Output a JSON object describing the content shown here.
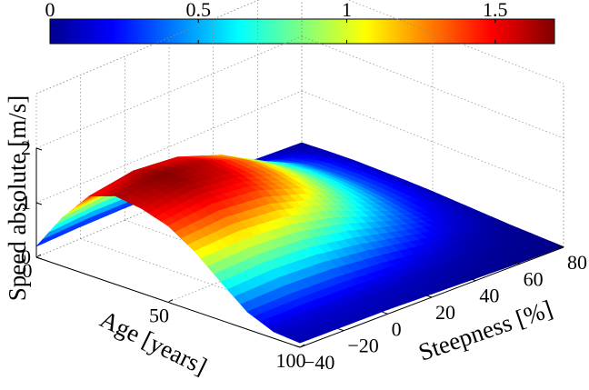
{
  "chart_data": {
    "type": "surface3d",
    "title": "",
    "colorbar": {
      "ticks": [
        0,
        0.5,
        1,
        1.5
      ],
      "tick_labels": [
        "0",
        "0.5",
        "1",
        "1.5"
      ],
      "range": [
        0,
        1.7
      ],
      "colormap": "jet",
      "placement": "top"
    },
    "xlabel": "Age [years]",
    "ylabel": "Steepness [%]",
    "zlabel": "Speed absolute [m/s]",
    "x_ticks": [
      0,
      50,
      100
    ],
    "x_tick_labels": [
      "0",
      "50",
      "100"
    ],
    "y_ticks": [
      -40,
      -20,
      0,
      20,
      40,
      60,
      80
    ],
    "y_tick_labels": [
      "−40",
      "−20",
      "0",
      "20",
      "40",
      "60",
      "80"
    ],
    "z_ticks": [
      0,
      1,
      2
    ],
    "z_tick_labels": [
      "0",
      "1",
      "2"
    ],
    "xlim": [
      0,
      100
    ],
    "ylim": [
      -40,
      80
    ],
    "zlim": [
      0,
      3
    ],
    "grid": true,
    "surface": {
      "age": [
        0,
        10,
        20,
        30,
        40,
        50,
        60,
        70,
        80,
        90,
        100
      ],
      "steepness": [
        -40,
        -20,
        0,
        20,
        40,
        60,
        80
      ],
      "speed": [
        [
          0.2,
          0.22,
          0.22,
          0.2,
          0.16,
          0.1,
          0.05
        ],
        [
          0.9,
          0.98,
          0.95,
          0.78,
          0.52,
          0.26,
          0.08
        ],
        [
          1.45,
          1.58,
          1.5,
          1.2,
          0.75,
          0.35,
          0.1
        ],
        [
          1.62,
          1.7,
          1.6,
          1.28,
          0.8,
          0.37,
          0.1
        ],
        [
          1.55,
          1.65,
          1.55,
          1.24,
          0.78,
          0.36,
          0.1
        ],
        [
          1.4,
          1.48,
          1.4,
          1.12,
          0.7,
          0.32,
          0.09
        ],
        [
          1.1,
          1.15,
          1.08,
          0.88,
          0.55,
          0.25,
          0.07
        ],
        [
          0.7,
          0.75,
          0.7,
          0.56,
          0.36,
          0.17,
          0.05
        ],
        [
          0.32,
          0.34,
          0.32,
          0.26,
          0.17,
          0.08,
          0.03
        ],
        [
          0.12,
          0.13,
          0.12,
          0.1,
          0.07,
          0.04,
          0.02
        ],
        [
          0.08,
          0.08,
          0.08,
          0.06,
          0.04,
          0.02,
          0.01
        ]
      ]
    }
  }
}
